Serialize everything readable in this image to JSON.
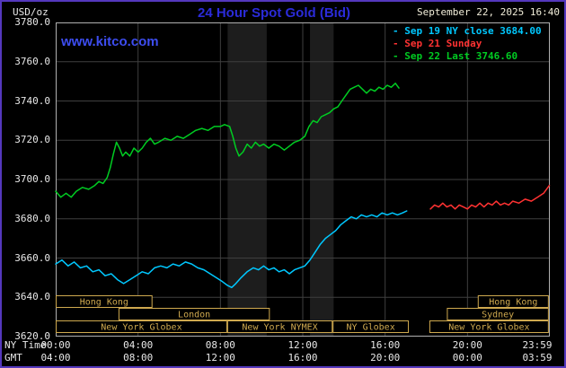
{
  "header": {
    "units_label": "USD/oz",
    "title": "24 Hour Spot Gold (Bid)",
    "datetime": "September 22, 2025 16:40",
    "watermark": "www.kitco.com"
  },
  "legend": {
    "marker": "-",
    "items": [
      {
        "label": "Sep 19 NY close 3684.00",
        "color": "#00c8ff"
      },
      {
        "label": "Sep 21 Sunday",
        "color": "#ff3232"
      },
      {
        "label": "Sep 22 Last 3746.60",
        "color": "#00cc22"
      }
    ]
  },
  "axes": {
    "y_ticks": [
      "3780.0",
      "3760.0",
      "3740.0",
      "3720.0",
      "3700.0",
      "3680.0",
      "3660.0",
      "3640.0",
      "3620.0"
    ],
    "x_rows": [
      {
        "label": "NY Time",
        "ticks": [
          "00:00",
          "04:00",
          "08:00",
          "12:00",
          "16:00",
          "20:00",
          "23:59"
        ]
      },
      {
        "label": "GMT",
        "ticks": [
          "04:00",
          "08:00",
          "12:00",
          "16:00",
          "20:00",
          "00:00",
          "03:59"
        ]
      }
    ]
  },
  "colors": {
    "background": "#000000",
    "outer_border": "#5438bd",
    "grid": "#3f3f3f",
    "band": "#1d1d1d",
    "frame": "#b0b0b0",
    "session": "#cfa94f",
    "axis_text": "#e8e8e8",
    "title": "#2b2bd9",
    "watermark": "#3d4df0",
    "datetime": "#f2eeda"
  },
  "chart_data": {
    "type": "line",
    "title": "24 Hour Spot Gold (Bid)",
    "ylabel": "USD/oz",
    "ylim": [
      3620,
      3780
    ],
    "xlim_hours": [
      0,
      24
    ],
    "grid": true,
    "legend_position": "top-right",
    "bands": [
      {
        "start": 8.35,
        "end": 10.25
      },
      {
        "start": 12.35,
        "end": 13.5
      }
    ],
    "series": [
      {
        "name": "Sep 19 NY close",
        "close": 3684.0,
        "color": "#00c8ff",
        "points": [
          [
            0,
            3657
          ],
          [
            0.3,
            3659
          ],
          [
            0.6,
            3656
          ],
          [
            0.9,
            3658
          ],
          [
            1.2,
            3655
          ],
          [
            1.5,
            3656
          ],
          [
            1.8,
            3653
          ],
          [
            2.1,
            3654
          ],
          [
            2.4,
            3651
          ],
          [
            2.7,
            3652
          ],
          [
            3,
            3649
          ],
          [
            3.3,
            3647
          ],
          [
            3.6,
            3649
          ],
          [
            3.9,
            3651
          ],
          [
            4.2,
            3653
          ],
          [
            4.5,
            3652
          ],
          [
            4.8,
            3655
          ],
          [
            5.1,
            3656
          ],
          [
            5.4,
            3655
          ],
          [
            5.7,
            3657
          ],
          [
            6,
            3656
          ],
          [
            6.3,
            3658
          ],
          [
            6.6,
            3657
          ],
          [
            6.9,
            3655
          ],
          [
            7.2,
            3654
          ],
          [
            7.5,
            3652
          ],
          [
            7.8,
            3650
          ],
          [
            8.1,
            3648
          ],
          [
            8.35,
            3646
          ],
          [
            8.55,
            3645
          ],
          [
            8.75,
            3647
          ],
          [
            9,
            3650
          ],
          [
            9.3,
            3653
          ],
          [
            9.6,
            3655
          ],
          [
            9.85,
            3654
          ],
          [
            10.1,
            3656
          ],
          [
            10.35,
            3654
          ],
          [
            10.6,
            3655
          ],
          [
            10.85,
            3653
          ],
          [
            11.1,
            3654
          ],
          [
            11.35,
            3652
          ],
          [
            11.6,
            3654
          ],
          [
            11.85,
            3655
          ],
          [
            12.1,
            3656
          ],
          [
            12.35,
            3659
          ],
          [
            12.6,
            3663
          ],
          [
            12.85,
            3667
          ],
          [
            13.1,
            3670
          ],
          [
            13.35,
            3672
          ],
          [
            13.6,
            3674
          ],
          [
            13.85,
            3677
          ],
          [
            14.1,
            3679
          ],
          [
            14.35,
            3681
          ],
          [
            14.6,
            3680
          ],
          [
            14.85,
            3682
          ],
          [
            15.1,
            3681
          ],
          [
            15.35,
            3682
          ],
          [
            15.6,
            3681
          ],
          [
            15.85,
            3683
          ],
          [
            16.1,
            3682
          ],
          [
            16.35,
            3683
          ],
          [
            16.6,
            3682
          ],
          [
            16.85,
            3683
          ],
          [
            17.05,
            3684
          ]
        ]
      },
      {
        "name": "Sep 21 Sunday",
        "color": "#ff3232",
        "points": [
          [
            18.2,
            3685
          ],
          [
            18.4,
            3687
          ],
          [
            18.6,
            3686
          ],
          [
            18.8,
            3688
          ],
          [
            19,
            3686
          ],
          [
            19.2,
            3687
          ],
          [
            19.4,
            3685
          ],
          [
            19.6,
            3687
          ],
          [
            19.8,
            3686
          ],
          [
            20,
            3685
          ],
          [
            20.2,
            3687
          ],
          [
            20.4,
            3686
          ],
          [
            20.6,
            3688
          ],
          [
            20.8,
            3686
          ],
          [
            21,
            3688
          ],
          [
            21.2,
            3687
          ],
          [
            21.4,
            3689
          ],
          [
            21.6,
            3687
          ],
          [
            21.8,
            3688
          ],
          [
            22,
            3687
          ],
          [
            22.2,
            3689
          ],
          [
            22.5,
            3688
          ],
          [
            22.8,
            3690
          ],
          [
            23.1,
            3689
          ],
          [
            23.4,
            3691
          ],
          [
            23.7,
            3693
          ],
          [
            23.98,
            3697
          ]
        ]
      },
      {
        "name": "Sep 22 Last",
        "last": 3746.6,
        "color": "#00cc22",
        "points": [
          [
            0,
            3694
          ],
          [
            0.25,
            3691
          ],
          [
            0.5,
            3693
          ],
          [
            0.75,
            3691
          ],
          [
            1,
            3694
          ],
          [
            1.3,
            3696
          ],
          [
            1.6,
            3695
          ],
          [
            1.9,
            3697
          ],
          [
            2.1,
            3699
          ],
          [
            2.3,
            3698
          ],
          [
            2.5,
            3701
          ],
          [
            2.65,
            3706
          ],
          [
            2.8,
            3713
          ],
          [
            2.95,
            3719
          ],
          [
            3.1,
            3716
          ],
          [
            3.25,
            3712
          ],
          [
            3.4,
            3714
          ],
          [
            3.6,
            3712
          ],
          [
            3.8,
            3716
          ],
          [
            4,
            3714
          ],
          [
            4.2,
            3716
          ],
          [
            4.4,
            3719
          ],
          [
            4.6,
            3721
          ],
          [
            4.8,
            3718
          ],
          [
            5,
            3719
          ],
          [
            5.3,
            3721
          ],
          [
            5.6,
            3720
          ],
          [
            5.9,
            3722
          ],
          [
            6.2,
            3721
          ],
          [
            6.5,
            3723
          ],
          [
            6.8,
            3725
          ],
          [
            7.1,
            3726
          ],
          [
            7.4,
            3725
          ],
          [
            7.7,
            3727
          ],
          [
            8,
            3727
          ],
          [
            8.2,
            3728
          ],
          [
            8.45,
            3727
          ],
          [
            8.6,
            3722
          ],
          [
            8.75,
            3716
          ],
          [
            8.9,
            3712
          ],
          [
            9.1,
            3714
          ],
          [
            9.3,
            3718
          ],
          [
            9.5,
            3716
          ],
          [
            9.7,
            3719
          ],
          [
            9.9,
            3717
          ],
          [
            10.1,
            3718
          ],
          [
            10.35,
            3716
          ],
          [
            10.6,
            3718
          ],
          [
            10.85,
            3717
          ],
          [
            11.1,
            3715
          ],
          [
            11.35,
            3717
          ],
          [
            11.6,
            3719
          ],
          [
            11.85,
            3720
          ],
          [
            12.1,
            3722
          ],
          [
            12.3,
            3727
          ],
          [
            12.5,
            3730
          ],
          [
            12.7,
            3729
          ],
          [
            12.9,
            3732
          ],
          [
            13.1,
            3733
          ],
          [
            13.3,
            3734
          ],
          [
            13.5,
            3736
          ],
          [
            13.7,
            3737
          ],
          [
            13.9,
            3740
          ],
          [
            14.1,
            3743
          ],
          [
            14.3,
            3746
          ],
          [
            14.5,
            3747
          ],
          [
            14.7,
            3748
          ],
          [
            14.9,
            3746
          ],
          [
            15.1,
            3744
          ],
          [
            15.3,
            3746
          ],
          [
            15.5,
            3745
          ],
          [
            15.7,
            3747
          ],
          [
            15.9,
            3746
          ],
          [
            16.1,
            3748
          ],
          [
            16.3,
            3747
          ],
          [
            16.5,
            3749
          ],
          [
            16.67,
            3746.6
          ]
        ]
      }
    ]
  },
  "sessions": {
    "rows": [
      {
        "boxes": [
          {
            "label": "Hong Kong",
            "start": 0,
            "end": 4.7
          },
          {
            "label": "Hong Kong",
            "start": 20.5,
            "end": 23.95
          }
        ]
      },
      {
        "boxes": [
          {
            "label": "London",
            "start": 3.05,
            "end": 10.4
          },
          {
            "label": "Sydney",
            "start": 19.0,
            "end": 23.95
          }
        ]
      },
      {
        "boxes": [
          {
            "label": "New York Globex",
            "start": 0,
            "end": 8.33
          },
          {
            "label": "New York NYMEX",
            "start": 8.33,
            "end": 13.45
          },
          {
            "label": "NY Globex",
            "start": 13.45,
            "end": 17.15
          },
          {
            "label": "New York Globex",
            "start": 18.15,
            "end": 23.95
          }
        ]
      }
    ]
  }
}
